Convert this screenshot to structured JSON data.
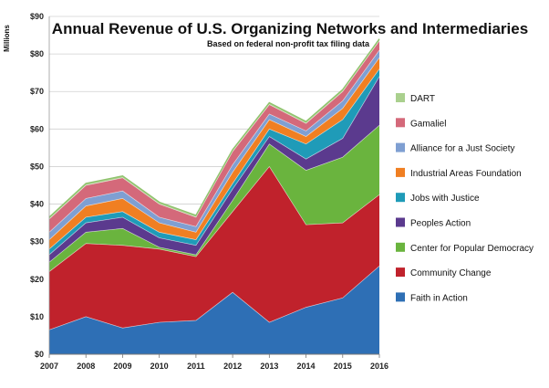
{
  "chart_data": {
    "type": "area",
    "stacked": true,
    "title": "Annual Revenue of U.S. Organizing Networks and Intermediaries",
    "subtitle": "Based on federal non-profit tax filing data",
    "xlabel": "",
    "ylabel": "Millions",
    "x": [
      "2007",
      "2008",
      "2009",
      "2010",
      "2011",
      "2012",
      "2013",
      "2014",
      "2015",
      "2016"
    ],
    "ylim": [
      0,
      90
    ],
    "yticks": [
      "$0",
      "$10",
      "$20",
      "$30",
      "$40",
      "$50",
      "$60",
      "$70",
      "$80",
      "$90"
    ],
    "grid": true,
    "legend_position": "right",
    "series": [
      {
        "name": "Faith in Action",
        "color": "#2e6fb5",
        "values": [
          6.5,
          10,
          7,
          8.5,
          9,
          16.5,
          8.5,
          12.5,
          15,
          23.5
        ]
      },
      {
        "name": "Community Change",
        "color": "#c0222c",
        "values": [
          15.5,
          19.5,
          22,
          19.5,
          17,
          21.5,
          41.5,
          22,
          20,
          19
        ]
      },
      {
        "name": "Center for Popular Democracy",
        "color": "#6ab43e",
        "values": [
          2.5,
          3,
          4.5,
          0.5,
          0.5,
          3,
          6,
          14.5,
          17.5,
          18.5
        ]
      },
      {
        "name": "Peoples Action",
        "color": "#5b3a8e",
        "values": [
          2,
          2.5,
          3,
          2.5,
          2.5,
          3,
          2,
          3,
          5,
          13
        ]
      },
      {
        "name": "Jobs with Justice",
        "color": "#1f9bb8",
        "values": [
          1.5,
          1.5,
          1.5,
          1.5,
          1.5,
          1.5,
          2,
          4,
          5,
          2
        ]
      },
      {
        "name": "Industrial Areas Foundation",
        "color": "#f07f22",
        "values": [
          2.5,
          3,
          3.5,
          2.5,
          2,
          3,
          2.5,
          2,
          3,
          3
        ]
      },
      {
        "name": "Alliance for a Just Society",
        "color": "#7f9fd2",
        "values": [
          2,
          2,
          2,
          1.5,
          1.5,
          2,
          1.5,
          1.5,
          2,
          2
        ]
      },
      {
        "name": "Gamaliel",
        "color": "#d4697a",
        "values": [
          3.5,
          3.5,
          3.5,
          3.5,
          2.5,
          3.5,
          2.5,
          2,
          2.5,
          2.5
        ]
      },
      {
        "name": "DART",
        "color": "#aad08e",
        "values": [
          0.5,
          0.5,
          0.5,
          0.5,
          0.5,
          0.5,
          0.5,
          0.5,
          0.5,
          0.5
        ]
      }
    ]
  }
}
